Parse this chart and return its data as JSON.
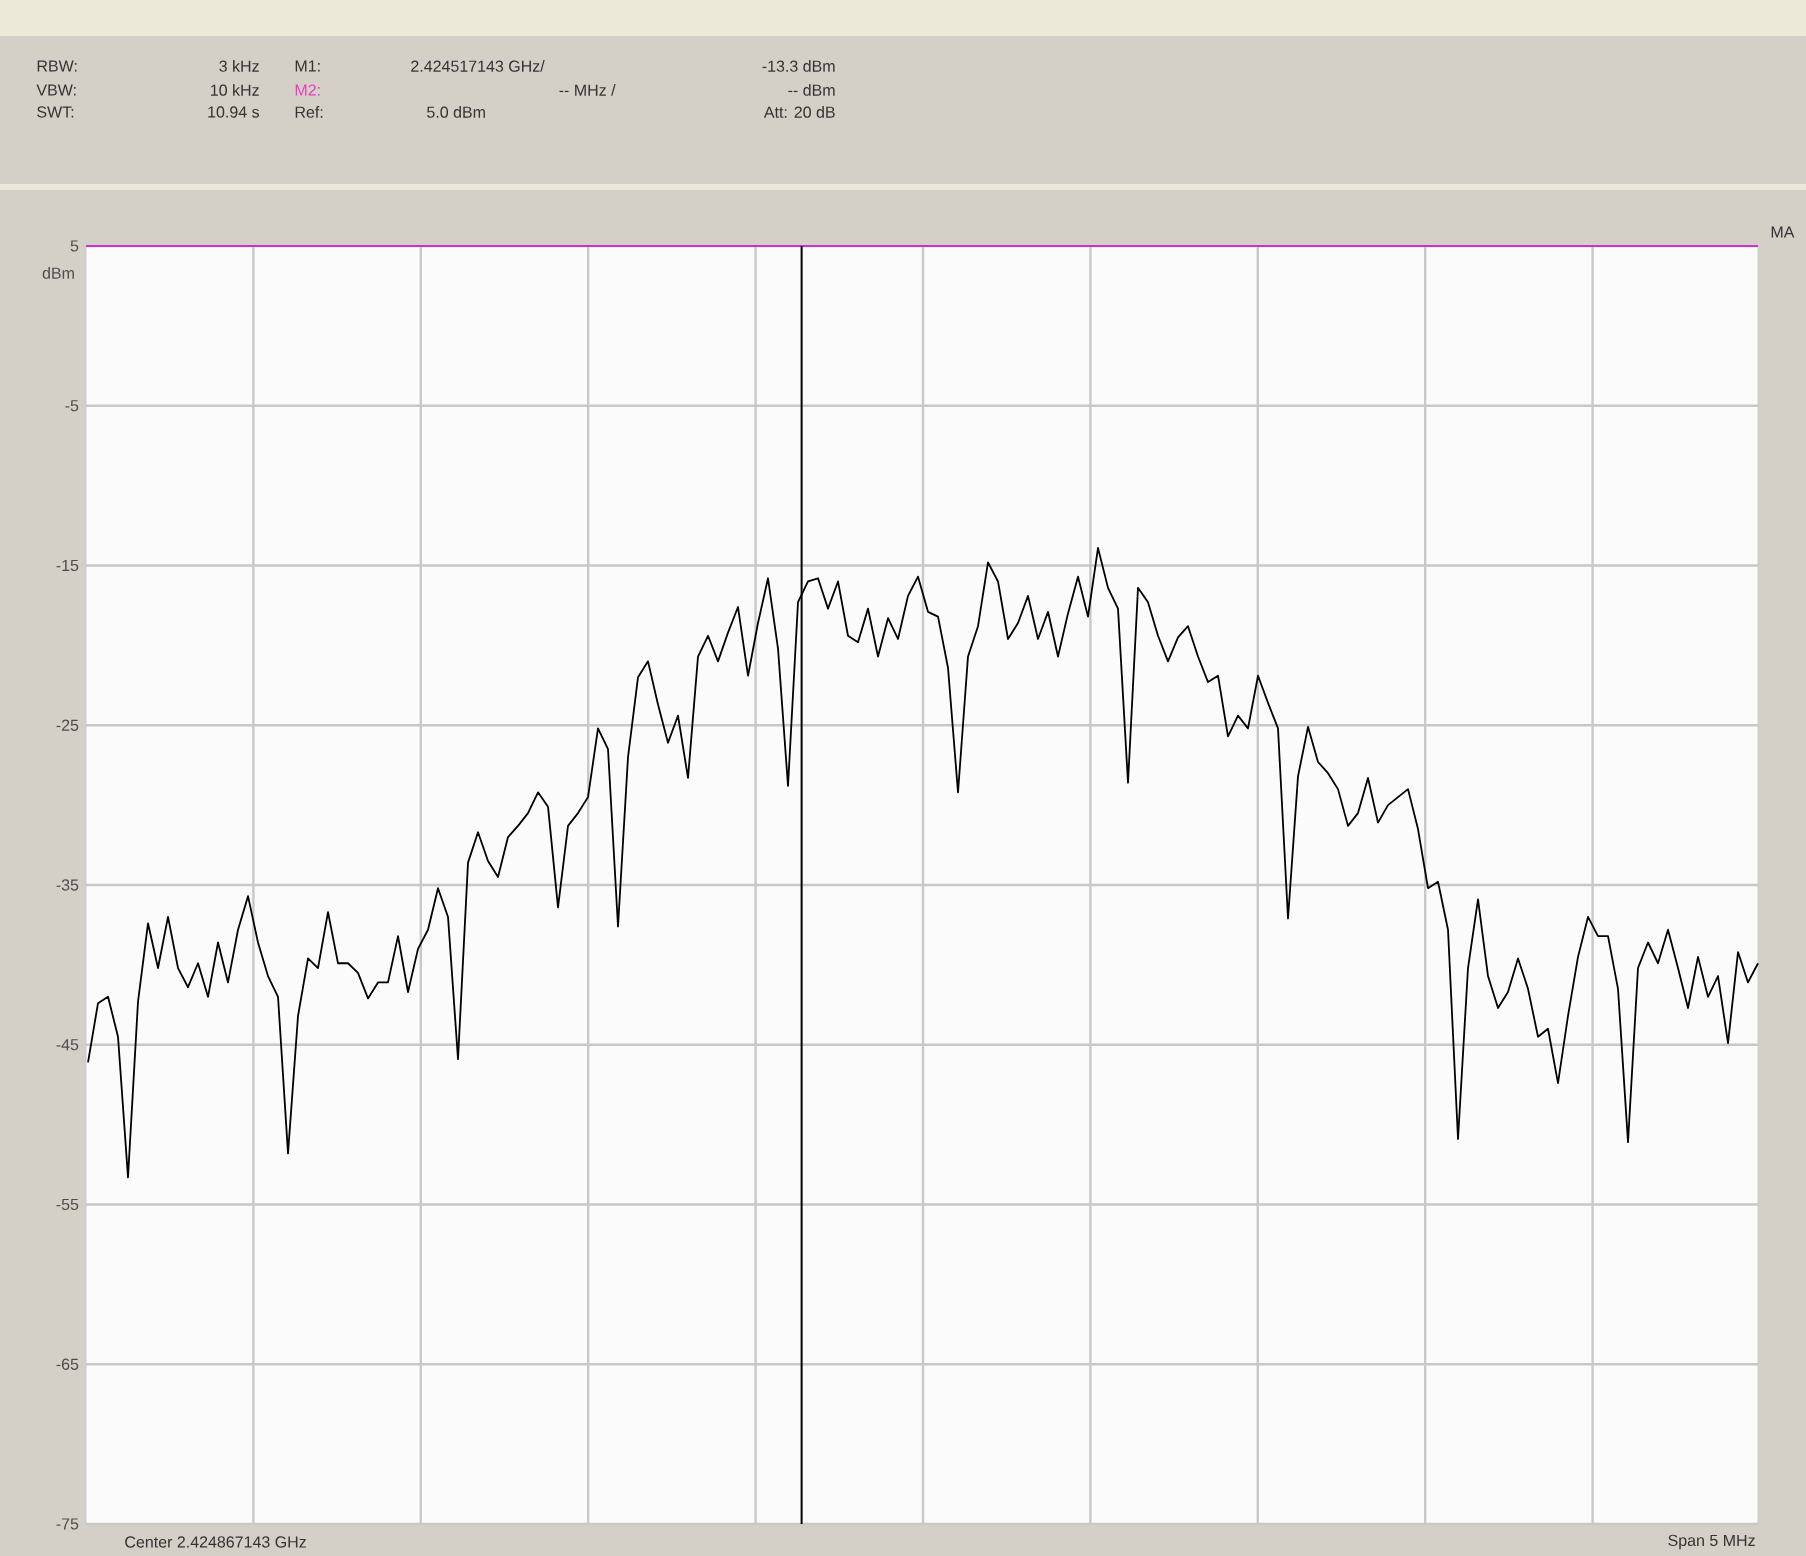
{
  "chart_data": {
    "type": "line",
    "ylabel": "dBm",
    "categories": [
      null,
      null,
      null,
      null,
      null,
      null,
      null,
      null,
      null,
      null,
      null,
      null,
      null,
      null,
      null,
      null,
      null,
      null,
      null,
      null,
      null,
      null,
      null,
      null,
      null,
      null,
      null,
      null,
      null,
      null,
      null,
      null,
      null,
      null,
      null,
      null,
      null,
      null,
      null,
      null,
      null,
      null,
      null,
      null,
      null,
      null,
      null,
      null,
      null,
      null,
      null,
      null,
      null,
      null,
      null,
      null,
      null,
      null,
      null,
      null,
      null,
      null,
      null,
      null,
      null,
      null,
      null,
      null,
      null,
      null,
      null,
      null,
      null,
      null,
      null,
      null,
      null,
      null,
      null,
      null,
      null,
      null,
      null,
      null,
      null,
      null,
      null,
      null,
      null,
      null,
      null,
      null,
      null,
      null,
      null,
      null,
      null,
      null,
      null,
      null,
      null,
      null,
      null,
      null,
      null,
      null,
      null,
      null,
      null,
      null,
      null,
      null,
      null,
      null,
      null,
      null,
      null,
      null,
      null,
      null,
      null,
      null,
      null,
      null,
      null,
      null,
      null,
      null,
      null,
      null,
      null,
      null,
      null,
      null,
      null,
      null,
      null,
      null,
      null,
      null,
      null,
      null,
      null,
      null,
      null,
      null,
      null,
      null,
      null,
      null,
      null,
      null,
      null,
      null,
      null,
      null,
      null,
      null,
      null,
      null,
      null,
      null,
      null,
      null,
      null,
      null,
      null,
      null
    ],
    "ylim": [
      -75,
      5
    ],
    "yticks": [
      5,
      -5,
      -15,
      -25,
      -35,
      -45,
      -55,
      -65,
      -75
    ],
    "grid": true,
    "series": [
      {
        "color": "#000000",
        "values": [
          -46.1,
          -42.4,
          -42.0,
          -44.5,
          -53.3,
          -42.3,
          -37.4,
          -40.2,
          -37.0,
          -40.2,
          -41.4,
          -39.9,
          -42.0,
          -38.6,
          -41.1,
          -37.8,
          -35.7,
          -38.6,
          -40.7,
          -42.0,
          -51.8,
          -43.2,
          -39.6,
          -40.2,
          -36.7,
          -39.9,
          -39.9,
          -40.5,
          -42.1,
          -41.1,
          -41.1,
          -38.2,
          -41.7,
          -39.0,
          -37.8,
          -35.2,
          -37.0,
          -45.9,
          -33.6,
          -31.7,
          -33.5,
          -34.5,
          -32.0,
          -31.3,
          -30.5,
          -29.2,
          -30.1,
          -36.4,
          -31.3,
          -30.5,
          -29.5,
          -25.2,
          -26.5,
          -37.6,
          -27.0,
          -22.0,
          -21.0,
          -23.7,
          -26.1,
          -24.4,
          -28.3,
          -20.7,
          -19.4,
          -21.0,
          -19.2,
          -17.6,
          -21.9,
          -18.6,
          -15.8,
          -20.2,
          -28.8,
          -17.3,
          -16.0,
          -15.8,
          -17.7,
          -16.0,
          -19.4,
          -19.8,
          -17.7,
          -20.7,
          -18.3,
          -19.6,
          -16.9,
          -15.7,
          -17.9,
          -18.2,
          -21.4,
          -29.2,
          -20.7,
          -18.8,
          -14.8,
          -16.0,
          -19.6,
          -18.6,
          -16.9,
          -19.6,
          -17.9,
          -20.7,
          -18.0,
          -15.7,
          -18.2,
          -13.9,
          -16.4,
          -17.7,
          -28.6,
          -16.4,
          -17.3,
          -19.4,
          -21.0,
          -19.5,
          -18.8,
          -20.7,
          -22.3,
          -21.9,
          -25.7,
          -24.4,
          -25.2,
          -21.9,
          -23.6,
          -25.2,
          -37.1,
          -28.2,
          -25.1,
          -27.3,
          -28.0,
          -29.0,
          -31.3,
          -30.5,
          -28.3,
          -31.1,
          -30.0,
          -29.5,
          -29.0,
          -31.5,
          -35.2,
          -34.8,
          -37.8,
          -50.9,
          -40.2,
          -35.9,
          -40.7,
          -42.7,
          -41.7,
          -39.6,
          -41.5,
          -44.5,
          -44.0,
          -47.4,
          -43.2,
          -39.5,
          -37.0,
          -38.2,
          -38.2,
          -41.5,
          -51.1,
          -40.2,
          -38.6,
          -39.9,
          -37.8,
          -40.2,
          -42.7,
          -39.5,
          -42.0,
          -40.7,
          -44.9,
          -39.2,
          -41.1,
          -39.9
        ]
      }
    ],
    "ref_lines": [
      {
        "axis": "y",
        "value": 5,
        "color": "#cc33cc"
      }
    ],
    "annotations": [
      "RBW:",
      "3 kHz",
      "M1:",
      "2.424517143 GHz/",
      "-13.3 dBm",
      "VBW:",
      "10 kHz",
      "M2:",
      "-- MHz /",
      "-- dBm",
      "SWT:",
      "10.94 s",
      "Ref:",
      "5.0 dBm",
      "Att: 20 dB",
      "Center 2.424867143 GHz",
      "Span 5 MHz",
      "MA"
    ]
  }
}
